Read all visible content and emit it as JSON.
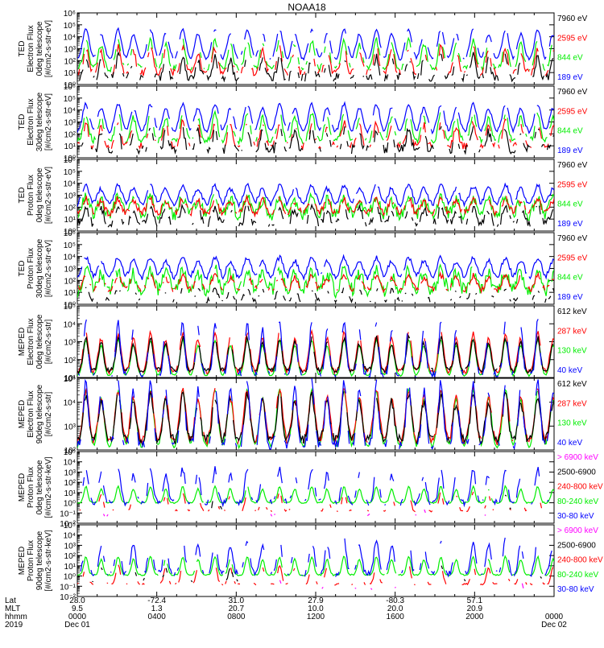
{
  "title": "NOAA18",
  "colors": {
    "blue": "#0000ff",
    "green": "#00ee00",
    "red": "#ff0000",
    "black": "#000000",
    "magenta": "#ff00ff"
  },
  "panels": [
    {
      "ylabel": [
        "TED",
        "Electron Flux",
        "0deg telescope",
        "[#/cm2-s-str-eV]"
      ],
      "yticks": [
        "10⁰",
        "10¹",
        "10²",
        "10³",
        "10⁴",
        "10⁵",
        "10⁶"
      ],
      "legend": [
        {
          "label": "7960 eV",
          "color": "#000000"
        },
        {
          "label": "2595 eV",
          "color": "#ff0000"
        },
        {
          "label": "844 eV",
          "color": "#00ee00"
        },
        {
          "label": "189 eV",
          "color": "#0000ff"
        }
      ]
    },
    {
      "ylabel": [
        "TED",
        "Electron Flux",
        "30deg telescope",
        "[#/cm2-s-str-eV]"
      ],
      "yticks": [
        "10⁰",
        "10¹",
        "10²",
        "10³",
        "10⁴",
        "10⁵",
        "10⁶"
      ],
      "legend": [
        {
          "label": "7960 eV",
          "color": "#000000"
        },
        {
          "label": "2595 eV",
          "color": "#ff0000"
        },
        {
          "label": "844 eV",
          "color": "#00ee00"
        },
        {
          "label": "189 eV",
          "color": "#0000ff"
        }
      ]
    },
    {
      "ylabel": [
        "TED",
        "Proton Flux",
        "0deg telescope",
        "[#/cm2-s-str-eV]"
      ],
      "yticks": [
        "10⁰",
        "10¹",
        "10²",
        "10³",
        "10⁴",
        "10⁵",
        "10⁶"
      ],
      "legend": [
        {
          "label": "7960 eV",
          "color": "#000000"
        },
        {
          "label": "2595 eV",
          "color": "#ff0000"
        },
        {
          "label": "844 eV",
          "color": "#00ee00"
        },
        {
          "label": "189 eV",
          "color": "#0000ff"
        }
      ]
    },
    {
      "ylabel": [
        "TED",
        "Proton Flux",
        "30deg telescope",
        "[#/cm2-s-str-eV]"
      ],
      "yticks": [
        "10⁰",
        "10¹",
        "10²",
        "10³",
        "10⁴",
        "10⁵",
        "10⁶"
      ],
      "legend": [
        {
          "label": "7960 eV",
          "color": "#000000"
        },
        {
          "label": "2595 eV",
          "color": "#ff0000"
        },
        {
          "label": "844 eV",
          "color": "#00ee00"
        },
        {
          "label": "189 eV",
          "color": "#0000ff"
        }
      ]
    },
    {
      "ylabel": [
        "MEPED",
        "Electron Flux",
        "0deg telescope",
        "[#/cm2-s-str]"
      ],
      "yticks": [
        "10¹",
        "10²",
        "10³",
        "10⁴",
        "10⁵"
      ],
      "legend": [
        {
          "label": "612 keV",
          "color": "#000000"
        },
        {
          "label": "287 keV",
          "color": "#ff0000"
        },
        {
          "label": "130 keV",
          "color": "#00ee00"
        },
        {
          "label": "40 keV",
          "color": "#0000ff"
        }
      ]
    },
    {
      "ylabel": [
        "MEPED",
        "Electron Flux",
        "90deg telescope",
        "[#/cm2-s-str]"
      ],
      "yticks": [
        "10²",
        "10³",
        "10⁴",
        "10⁵"
      ],
      "legend": [
        {
          "label": "612 keV",
          "color": "#000000"
        },
        {
          "label": "287 keV",
          "color": "#ff0000"
        },
        {
          "label": "130 keV",
          "color": "#00ee00"
        },
        {
          "label": "40 keV",
          "color": "#0000ff"
        }
      ]
    },
    {
      "ylabel": [
        "MEPED",
        "Proton Flux",
        "0deg telescope",
        "[#/cm2-s-str-keV]"
      ],
      "yticks": [
        "10⁻²",
        "10⁻¹",
        "10⁰",
        "10¹",
        "10²",
        "10³",
        "10⁴",
        "10⁵"
      ],
      "legend": [
        {
          "label": "> 6900 keV",
          "color": "#ff00ff"
        },
        {
          "label": "2500-6900",
          "color": "#000000"
        },
        {
          "label": "240-800 keV",
          "color": "#ff0000"
        },
        {
          "label": "80-240 keV",
          "color": "#00ee00"
        },
        {
          "label": "30-80 keV",
          "color": "#0000ff"
        }
      ]
    },
    {
      "ylabel": [
        "MEPED",
        "Proton Flux",
        "90deg telescope",
        "[#/cm2-s-str-keV]"
      ],
      "yticks": [
        "10⁻²",
        "10⁻¹",
        "10⁰",
        "10¹",
        "10²",
        "10³",
        "10⁴",
        "10⁵"
      ],
      "legend": [
        {
          "label": "> 6900 keV",
          "color": "#ff00ff"
        },
        {
          "label": "2500-6900",
          "color": "#000000"
        },
        {
          "label": "240-800 keV",
          "color": "#ff0000"
        },
        {
          "label": "80-240 keV",
          "color": "#00ee00"
        },
        {
          "label": "30-80 keV",
          "color": "#0000ff"
        }
      ]
    }
  ],
  "footer": {
    "row_labels": [
      "Lat",
      "MLT",
      "hhmm",
      "2019"
    ],
    "columns": [
      {
        "lat": "28.0",
        "mlt": "9.5",
        "hhmm": "0000",
        "date": "Dec 01"
      },
      {
        "lat": "-72.4",
        "mlt": "1.3",
        "hhmm": "0400",
        "date": ""
      },
      {
        "lat": "31.0",
        "mlt": "20.7",
        "hhmm": "0800",
        "date": ""
      },
      {
        "lat": "27.9",
        "mlt": "10.0",
        "hhmm": "1200",
        "date": ""
      },
      {
        "lat": "-80.3",
        "mlt": "20.0",
        "hhmm": "1600",
        "date": ""
      },
      {
        "lat": "57.1",
        "mlt": "20.9",
        "hhmm": "2000",
        "date": ""
      },
      {
        "lat": "",
        "mlt": "",
        "hhmm": "0000",
        "date": "Dec 02"
      }
    ]
  },
  "chart_data": {
    "type": "line",
    "title": "NOAA18",
    "x_axis": "time (hhmm), 2019 Dec 01 0000 to Dec 02 0000",
    "xticks_hhmm": [
      "0000",
      "0400",
      "0800",
      "1200",
      "1600",
      "2000",
      "0000"
    ],
    "log_y": true,
    "panels": [
      {
        "name": "TED Electron Flux 0deg telescope",
        "units": "#/cm2-s-str-eV",
        "ylim": [
          1,
          1000000
        ],
        "series": [
          {
            "name": "7960 eV"
          },
          {
            "name": "2595 eV"
          },
          {
            "name": "844 eV"
          },
          {
            "name": "189 eV"
          }
        ]
      },
      {
        "name": "TED Electron Flux 30deg telescope",
        "units": "#/cm2-s-str-eV",
        "ylim": [
          1,
          1000000
        ],
        "series": [
          {
            "name": "7960 eV"
          },
          {
            "name": "2595 eV"
          },
          {
            "name": "844 eV"
          },
          {
            "name": "189 eV"
          }
        ]
      },
      {
        "name": "TED Proton Flux 0deg telescope",
        "units": "#/cm2-s-str-eV",
        "ylim": [
          1,
          1000000
        ],
        "series": [
          {
            "name": "7960 eV"
          },
          {
            "name": "2595 eV"
          },
          {
            "name": "844 eV"
          },
          {
            "name": "189 eV"
          }
        ]
      },
      {
        "name": "TED Proton Flux 30deg telescope",
        "units": "#/cm2-s-str-eV",
        "ylim": [
          1,
          1000000
        ],
        "series": [
          {
            "name": "7960 eV"
          },
          {
            "name": "2595 eV"
          },
          {
            "name": "844 eV"
          },
          {
            "name": "189 eV"
          }
        ]
      },
      {
        "name": "MEPED Electron Flux 0deg telescope",
        "units": "#/cm2-s-str",
        "ylim": [
          10,
          100000
        ],
        "series": [
          {
            "name": "612 keV"
          },
          {
            "name": "287 keV"
          },
          {
            "name": "130 keV"
          },
          {
            "name": "40 keV"
          }
        ]
      },
      {
        "name": "MEPED Electron Flux 90deg telescope",
        "units": "#/cm2-s-str",
        "ylim": [
          100,
          100000
        ],
        "series": [
          {
            "name": "612 keV"
          },
          {
            "name": "287 keV"
          },
          {
            "name": "130 keV"
          },
          {
            "name": "40 keV"
          }
        ]
      },
      {
        "name": "MEPED Proton Flux 0deg telescope",
        "units": "#/cm2-s-str-keV",
        "ylim": [
          0.01,
          100000
        ],
        "series": [
          {
            "name": "> 6900 keV"
          },
          {
            "name": "2500-6900"
          },
          {
            "name": "240-800 keV"
          },
          {
            "name": "80-240 keV"
          },
          {
            "name": "30-80 keV"
          }
        ]
      },
      {
        "name": "MEPED Proton Flux 90deg telescope",
        "units": "#/cm2-s-str-keV",
        "ylim": [
          0.01,
          100000
        ],
        "series": [
          {
            "name": "> 6900 keV"
          },
          {
            "name": "2500-6900"
          },
          {
            "name": "240-800 keV"
          },
          {
            "name": "80-240 keV"
          },
          {
            "name": "30-80 keV"
          }
        ]
      }
    ]
  }
}
